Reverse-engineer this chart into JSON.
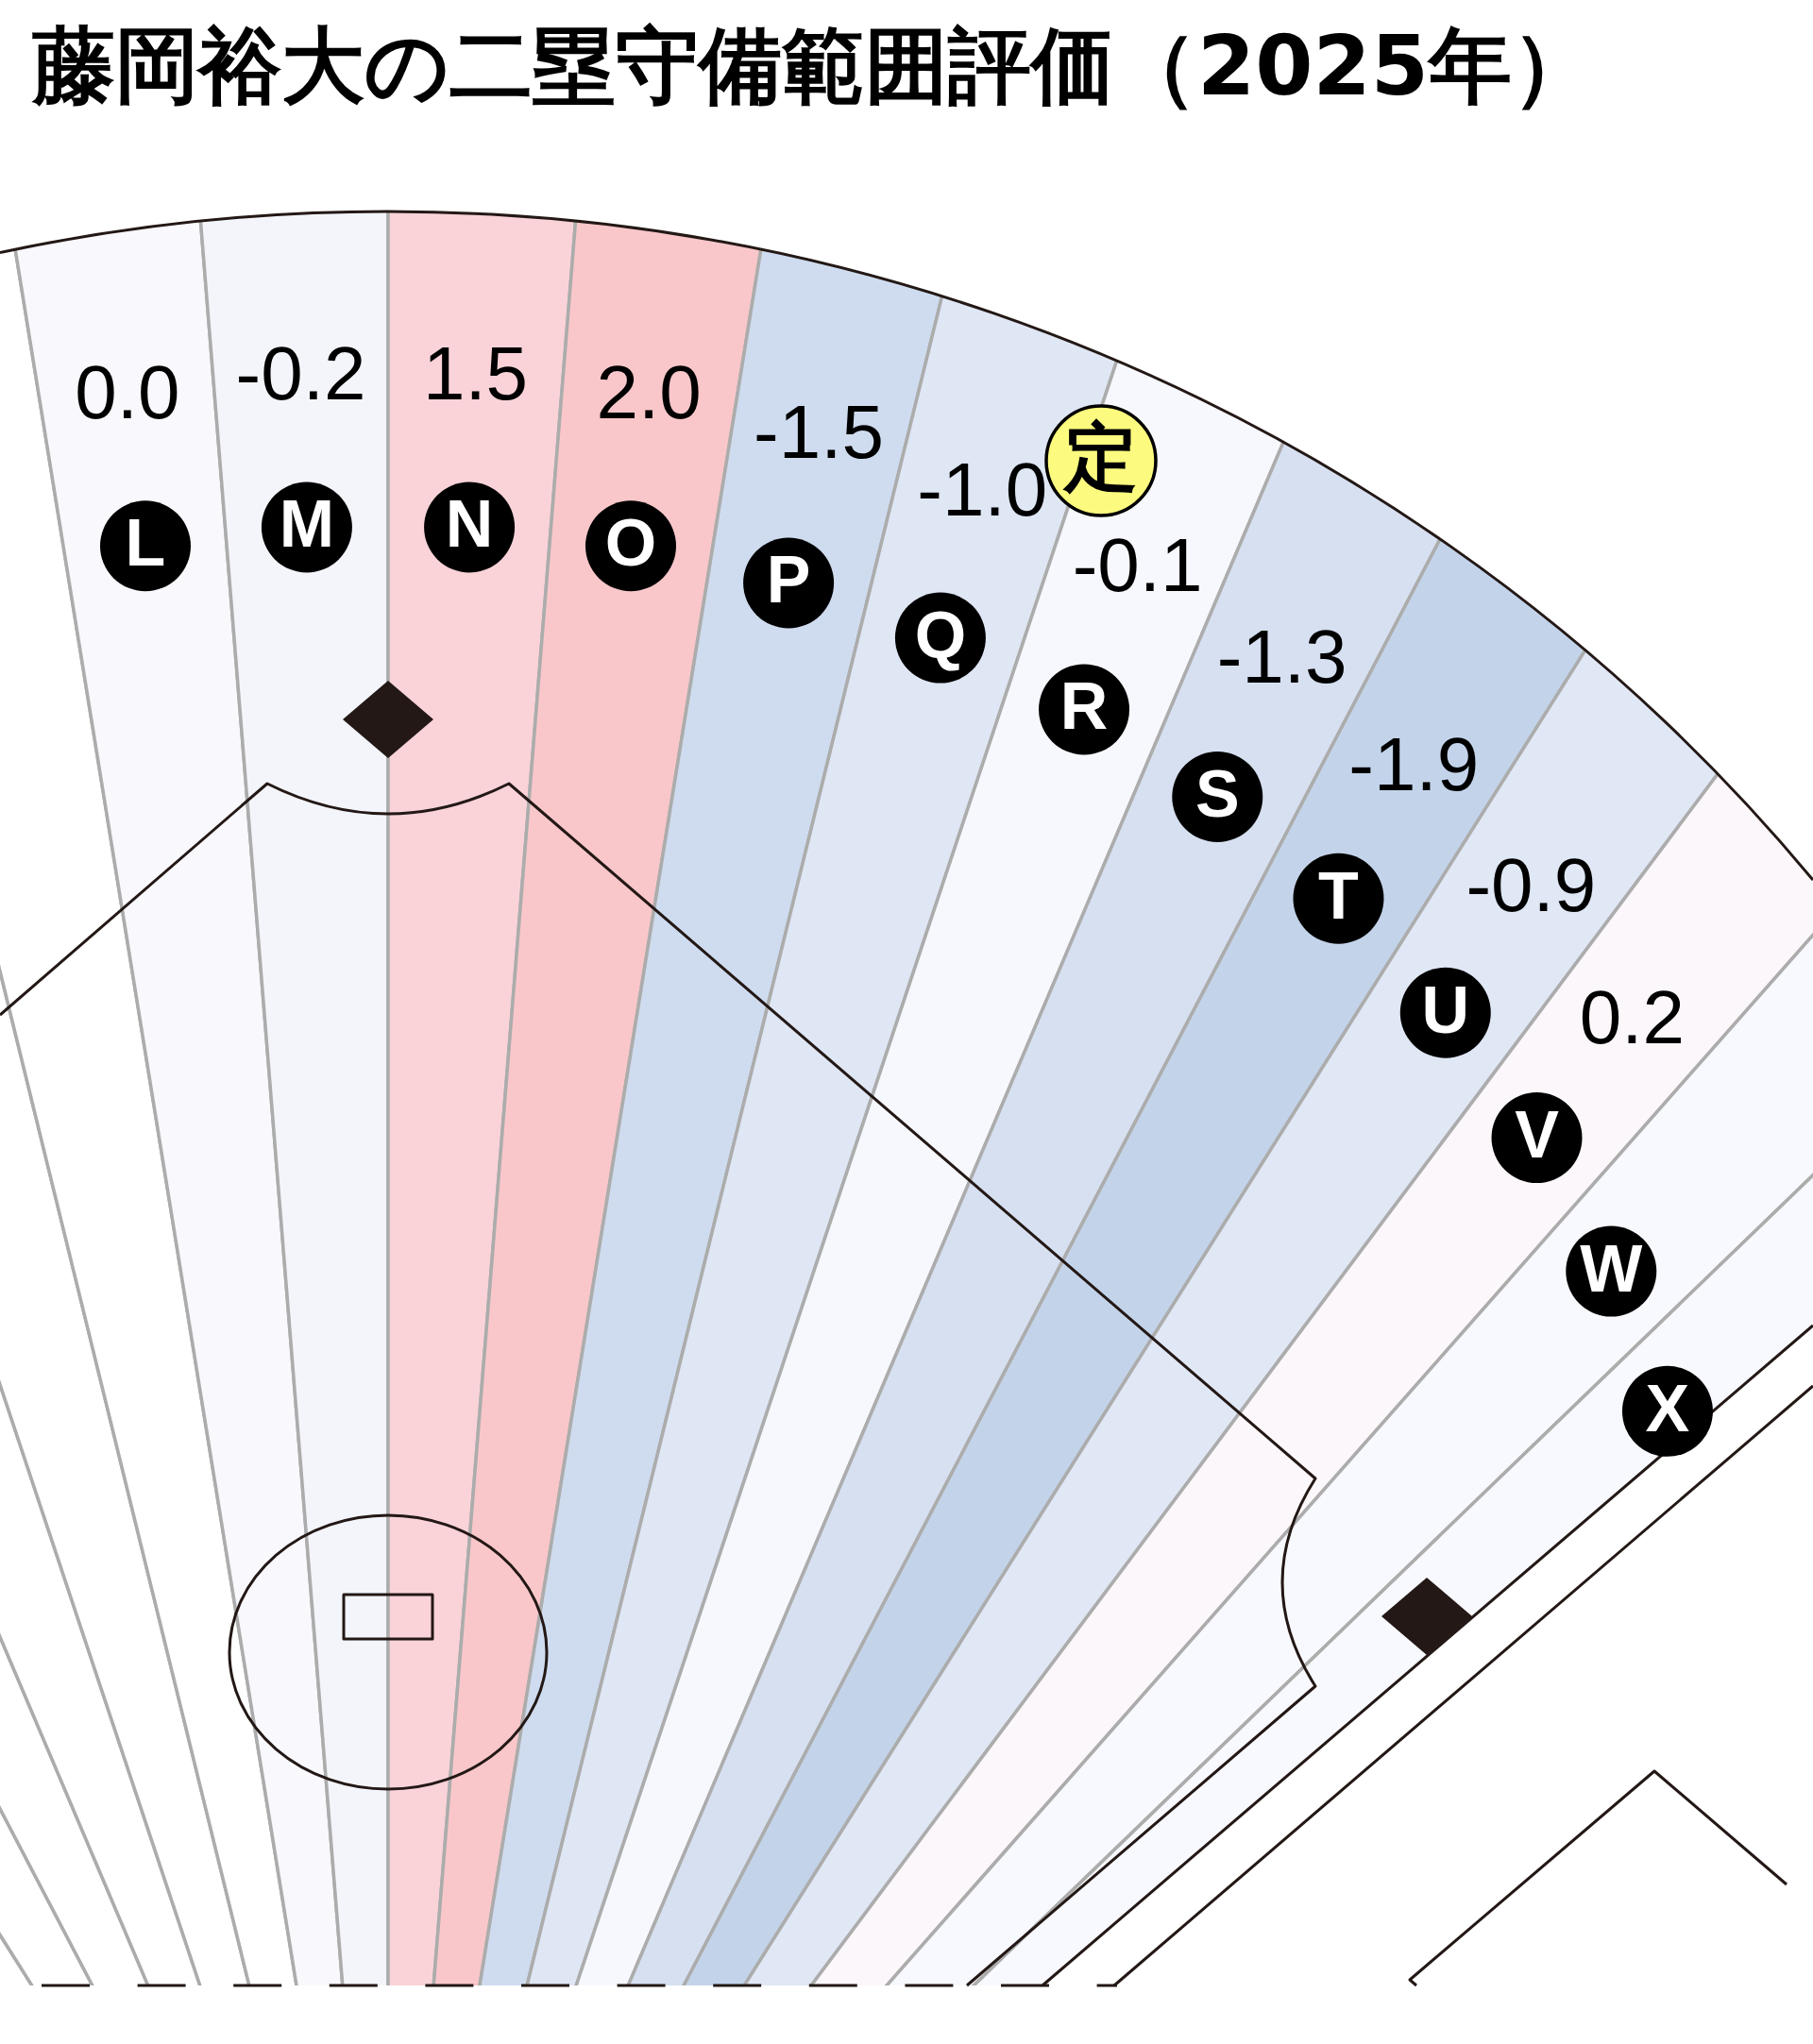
{
  "chart_data": {
    "type": "other",
    "title": "藤岡裕大の二塁守備範囲評価（2025年）",
    "categories": [
      null,
      null,
      null,
      null,
      null,
      null,
      "L",
      "M",
      "N",
      "O",
      "P",
      "Q",
      "R",
      "S",
      "T",
      "U",
      "V",
      "W",
      "X"
    ],
    "values": [
      null,
      null,
      null,
      null,
      null,
      null,
      0.0,
      -0.2,
      1.5,
      2.0,
      -1.5,
      -1.0,
      -0.1,
      -1.3,
      -1.9,
      -0.9,
      0.2,
      null,
      null
    ],
    "value_labels": [
      null,
      null,
      null,
      null,
      null,
      null,
      "0.0",
      "-0.2",
      "1.5",
      "2.0",
      "-1.5",
      "-1.0",
      "-0.1",
      "-1.3",
      "-1.9",
      "-0.9",
      "0.2",
      null,
      null
    ],
    "colors": [
      "#ffffff",
      "#ffffff",
      "#ffffff",
      "#ffffff",
      "#ffffff",
      "#ffffff",
      "#f8f8fd",
      "#f3f5fb",
      "#f9d3d8",
      "#f9c7ca",
      "#cfdcef",
      "#dfe6f4",
      "#f6f8fd",
      "#d6e0f1",
      "#c3d4ea",
      "#e0e7f5",
      "#fcf7fa",
      "#f8f9fe",
      "#f8f9fe"
    ],
    "annotations": [
      "定"
    ]
  }
}
